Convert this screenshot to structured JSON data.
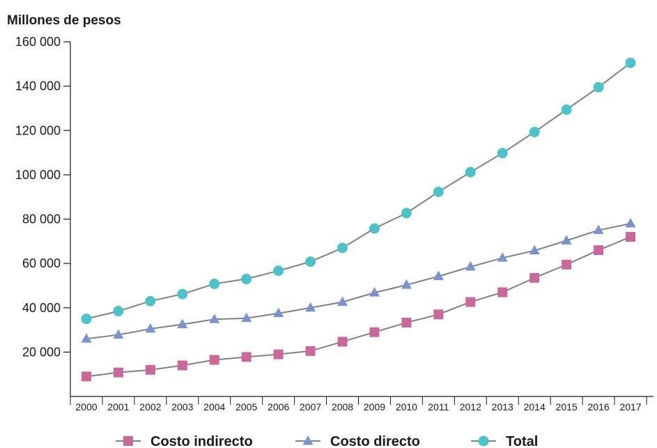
{
  "chart_data": {
    "type": "line",
    "ylabel": "Millones de pesos",
    "xlabel": "",
    "ylim": [
      0,
      160000
    ],
    "yticks": [
      20000,
      40000,
      60000,
      80000,
      100000,
      120000,
      140000,
      160000
    ],
    "ytick_labels": [
      "20 000",
      "40 000",
      "60 000",
      "80 000",
      "100 000",
      "120 000",
      "140 000",
      "160 000"
    ],
    "x": [
      "2000",
      "2001",
      "2002",
      "2003",
      "2004",
      "2005",
      "2006",
      "2007",
      "2008",
      "2009",
      "2010",
      "2011",
      "2012",
      "2013",
      "2014",
      "2015",
      "2016",
      "2017"
    ],
    "grid": false,
    "legend": "bottom",
    "series": [
      {
        "name": "Costo indirecto",
        "marker": "square",
        "color": "#c9689b",
        "values": [
          9000,
          10800,
          12000,
          14000,
          16500,
          17800,
          19000,
          20500,
          24700,
          29000,
          33300,
          37000,
          42600,
          47000,
          53500,
          59500,
          66000,
          72000
        ]
      },
      {
        "name": "Costo directo",
        "marker": "triangle",
        "color": "#7b93cc",
        "values": [
          26000,
          27800,
          30500,
          32500,
          34800,
          35300,
          37500,
          40000,
          42600,
          46800,
          50300,
          54200,
          58500,
          62500,
          65800,
          70300,
          75000,
          78000
        ]
      },
      {
        "name": "Total",
        "marker": "circle",
        "color": "#4fc2c9",
        "values": [
          35000,
          38500,
          43000,
          46200,
          50800,
          53000,
          56700,
          60800,
          67000,
          75800,
          82700,
          92300,
          101200,
          109800,
          119300,
          129400,
          139500,
          150500
        ]
      }
    ],
    "line_color": "#808080"
  }
}
